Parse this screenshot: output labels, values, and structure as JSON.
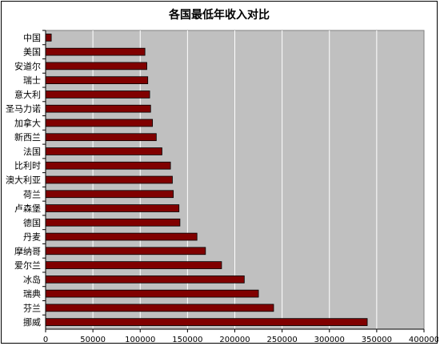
{
  "chart_data": {
    "type": "bar",
    "orientation": "horizontal",
    "title": "各国最低年收入对比",
    "xlabel": "",
    "ylabel": "",
    "categories": [
      "中国",
      "美国",
      "安道尔",
      "瑞士",
      "意大利",
      "圣马力诺",
      "加拿大",
      "新西兰",
      "法国",
      "比利时",
      "澳大利亚",
      "荷兰",
      "卢森堡",
      "德国",
      "丹麦",
      "摩纳哥",
      "爱尔兰",
      "冰岛",
      "瑞典",
      "芬兰",
      "挪威"
    ],
    "values": [
      6000,
      105000,
      107000,
      108000,
      110000,
      111000,
      113000,
      117000,
      123000,
      132000,
      134000,
      135000,
      141000,
      142000,
      160000,
      169000,
      186000,
      210000,
      225000,
      241000,
      340000
    ],
    "xlim": [
      0,
      400000
    ],
    "xticks": [
      0,
      50000,
      100000,
      150000,
      200000,
      250000,
      300000,
      350000,
      400000
    ],
    "xtick_labels": [
      "0",
      "50000",
      "100000",
      "150000",
      "200000",
      "250000",
      "300000",
      "350000",
      "400000"
    ],
    "grid": true,
    "legend": "none",
    "colors": {
      "plot_background": "#c0c0c0",
      "bar_fill": "#800000",
      "bar_stroke": "#000000",
      "gridline": "#ffffff"
    }
  }
}
